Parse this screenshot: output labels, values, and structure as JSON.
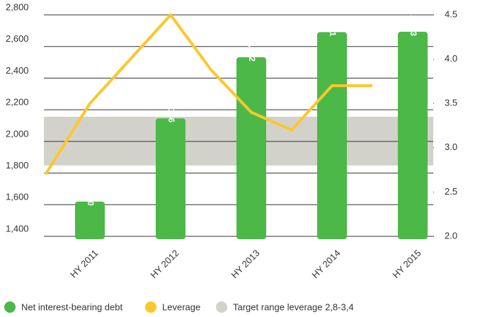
{
  "chart_data": {
    "type": "bar-line",
    "categories": [
      "HY 2011",
      "HY 2012",
      "HY 2013",
      "HY 2014",
      "HY 2015"
    ],
    "series": [
      {
        "name": "Net interest-bearing debt",
        "color": "#4cb847",
        "values": [
          1620,
          2146,
          2532,
          2691,
          2693
        ],
        "value_labels": [
          "1,620",
          "2,146",
          "2,532",
          "2,691",
          "2,693"
        ]
      },
      {
        "name": "Leverage",
        "color": "#fcc72c",
        "axis": "y2",
        "x": [
          -0.55,
          0,
          0.5,
          1,
          1.5,
          2,
          2.5,
          3,
          3.5
        ],
        "values": [
          2.7,
          3.5,
          4.0,
          4.5,
          3.88,
          3.4,
          3.2,
          3.7,
          3.7
        ]
      }
    ],
    "band": {
      "name": "Target range leverage 2,8-3,4",
      "color": "#d2d2cb",
      "axis": "y2",
      "range": [
        2.8,
        3.35
      ]
    },
    "ylim": [
      1400,
      2800
    ],
    "yticks": [
      {
        "value": 1400,
        "label": "1,400"
      },
      {
        "value": 1600,
        "label": "1,600"
      },
      {
        "value": 1800,
        "label": "1,800"
      },
      {
        "value": 2000,
        "label": "2,000"
      },
      {
        "value": 2200,
        "label": "2,200"
      },
      {
        "value": 2400,
        "label": "2,400"
      },
      {
        "value": 2600,
        "label": "2,600"
      },
      {
        "value": 2800,
        "label": "2,800"
      }
    ],
    "y2lim": [
      2.0,
      4.5
    ],
    "y2ticks": [
      {
        "value": 2,
        "label": "2.0"
      },
      2.5,
      {
        "value": 3,
        "label": "3.0"
      },
      3.5,
      {
        "value": 4,
        "label": "4.0"
      },
      4.5
    ],
    "grid": true,
    "legend": "bottom"
  }
}
